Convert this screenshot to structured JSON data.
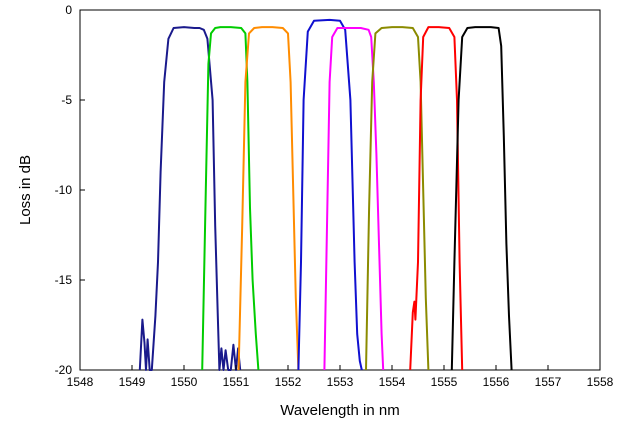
{
  "chart_data": {
    "type": "line",
    "title": "",
    "xlabel": "Wavelength in nm",
    "ylabel": "Loss in dB",
    "xlim": [
      1548,
      1558
    ],
    "ylim": [
      -20,
      0
    ],
    "xticks": [
      1548,
      1549,
      1550,
      1551,
      1552,
      1553,
      1554,
      1555,
      1556,
      1557,
      1558
    ],
    "yticks": [
      0,
      -5,
      -10,
      -15,
      -20
    ],
    "grid": false,
    "legend": "none",
    "series": [
      {
        "color": "#1a1a8c",
        "x": [
          1549.15,
          1549.2,
          1549.24,
          1549.27,
          1549.3,
          1549.34,
          1549.38,
          1549.45,
          1549.5,
          1549.55,
          1549.62,
          1549.7,
          1549.8,
          1550,
          1550.2,
          1550.3,
          1550.38,
          1550.45,
          1550.55,
          1550.6,
          1550.65,
          1550.68,
          1550.72,
          1550.76,
          1550.8,
          1550.85,
          1550.9,
          1550.95,
          1551.0,
          1551.04,
          1551.08
        ],
        "y": [
          -20,
          -17.2,
          -18.5,
          -20,
          -18.3,
          -20,
          -20,
          -17,
          -14,
          -9,
          -4,
          -1.6,
          -1.0,
          -0.95,
          -1.0,
          -1.0,
          -1.1,
          -1.6,
          -5,
          -12,
          -17,
          -20,
          -18.8,
          -20,
          -18.9,
          -20,
          -20,
          -18.6,
          -20,
          -18.8,
          -20
        ]
      },
      {
        "color": "#00cc00",
        "x": [
          1550.35,
          1550.42,
          1550.47,
          1550.52,
          1550.6,
          1550.7,
          1550.9,
          1551.1,
          1551.18,
          1551.22,
          1551.27,
          1551.32,
          1551.38,
          1551.43
        ],
        "y": [
          -20,
          -10,
          -3,
          -1.3,
          -1.0,
          -0.95,
          -0.95,
          -1.0,
          -1.3,
          -4,
          -11,
          -15,
          -18,
          -20
        ]
      },
      {
        "color": "#ff8c00",
        "x": [
          1551.05,
          1551.12,
          1551.18,
          1551.25,
          1551.35,
          1551.5,
          1551.7,
          1551.9,
          1552.0,
          1552.05,
          1552.1,
          1552.15,
          1552.2
        ],
        "y": [
          -20,
          -12,
          -4,
          -1.3,
          -1.0,
          -0.95,
          -0.95,
          -1.0,
          -1.3,
          -4,
          -10,
          -16,
          -20
        ]
      },
      {
        "color": "#1010d0",
        "x": [
          1552.2,
          1552.25,
          1552.3,
          1552.38,
          1552.5,
          1552.8,
          1553.0,
          1553.1,
          1553.2,
          1553.28,
          1553.33,
          1553.38,
          1553.42
        ],
        "y": [
          -20,
          -14,
          -5,
          -1.2,
          -0.6,
          -0.55,
          -0.6,
          -1.1,
          -5,
          -14,
          -18,
          -19.5,
          -20
        ]
      },
      {
        "color": "#ff00ff",
        "x": [
          1552.7,
          1552.75,
          1552.8,
          1552.85,
          1552.95,
          1553.2,
          1553.4,
          1553.55,
          1553.6,
          1553.65,
          1553.7,
          1553.75,
          1553.8,
          1553.83
        ],
        "y": [
          -20,
          -12,
          -4,
          -1.5,
          -1.0,
          -1.0,
          -1.0,
          -1.1,
          -1.5,
          -4,
          -8,
          -13,
          -18,
          -20
        ]
      },
      {
        "color": "#8b8b00",
        "x": [
          1553.5,
          1553.56,
          1553.62,
          1553.68,
          1553.8,
          1554.0,
          1554.2,
          1554.4,
          1554.5,
          1554.55,
          1554.6,
          1554.65,
          1554.7
        ],
        "y": [
          -20,
          -11,
          -4,
          -1.3,
          -1.0,
          -0.95,
          -0.95,
          -1.0,
          -1.5,
          -4,
          -10,
          -16,
          -20
        ]
      },
      {
        "color": "#ff0000",
        "x": [
          1554.35,
          1554.4,
          1554.43,
          1554.45,
          1554.5,
          1554.55,
          1554.6,
          1554.7,
          1554.9,
          1555.1,
          1555.2,
          1555.25,
          1555.3,
          1555.35
        ],
        "y": [
          -20,
          -16.8,
          -16.2,
          -17.2,
          -14,
          -5,
          -1.5,
          -0.95,
          -0.95,
          -1.0,
          -1.5,
          -5,
          -14,
          -20
        ]
      },
      {
        "color": "#000000",
        "x": [
          1555.15,
          1555.2,
          1555.28,
          1555.35,
          1555.45,
          1555.6,
          1555.9,
          1556.05,
          1556.1,
          1556.15,
          1556.2,
          1556.25,
          1556.3
        ],
        "y": [
          -20,
          -14,
          -5,
          -1.5,
          -1.0,
          -0.95,
          -0.95,
          -1.0,
          -2,
          -7,
          -13,
          -17,
          -20
        ]
      }
    ]
  }
}
